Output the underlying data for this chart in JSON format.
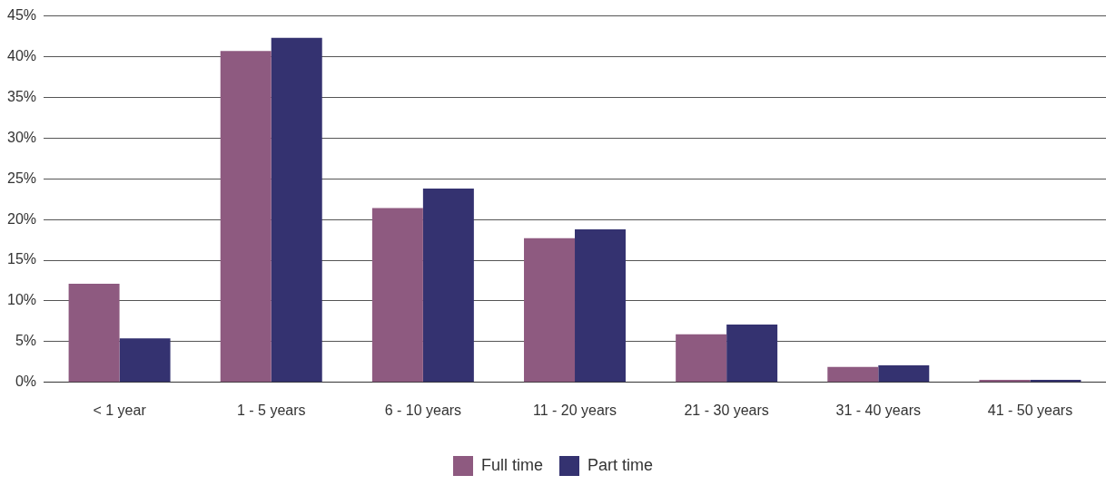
{
  "chart_data": {
    "type": "bar",
    "categories": [
      "< 1 year",
      "1 - 5 years",
      "6 - 10 years",
      "11 - 20 years",
      "21 - 30 years",
      "31 - 40 years",
      "41 - 50 years"
    ],
    "series": [
      {
        "name": "Full time",
        "color": "#8e5a80",
        "values": [
          12.1,
          40.7,
          21.4,
          17.7,
          5.9,
          1.9,
          0.3
        ]
      },
      {
        "name": "Part time",
        "color": "#343270",
        "values": [
          5.4,
          42.3,
          23.8,
          18.8,
          7.1,
          2.1,
          0.3
        ]
      }
    ],
    "ylim": [
      0,
      45
    ],
    "yticks": [
      {
        "value": 0,
        "label": "0%"
      },
      {
        "value": 5,
        "label": "5%"
      },
      {
        "value": 10,
        "label": "10%"
      },
      {
        "value": 15,
        "label": "15%"
      },
      {
        "value": 20,
        "label": "20%"
      },
      {
        "value": 25,
        "label": "25%"
      },
      {
        "value": 30,
        "label": "30%"
      },
      {
        "value": 35,
        "label": "35%"
      },
      {
        "value": 40,
        "label": "40%"
      },
      {
        "value": 45,
        "label": "45%"
      }
    ],
    "grid": "y",
    "legend": "bottom"
  }
}
